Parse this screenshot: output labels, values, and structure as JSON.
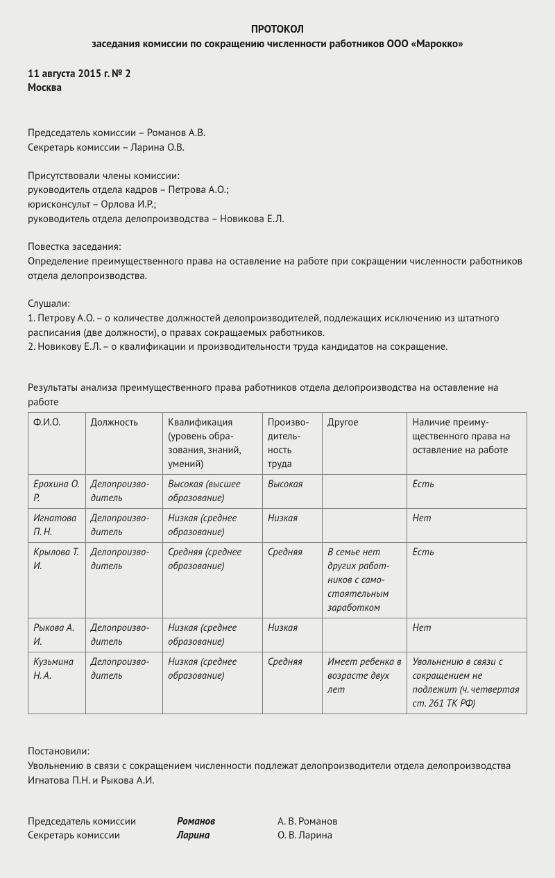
{
  "header": {
    "line1": "ПРОТОКОЛ",
    "line2": "заседания комиссии по сокращению численности работников ООО «Марокко»"
  },
  "date_block": {
    "date": "11 августа 2015 г. № 2",
    "city": "Москва"
  },
  "participants": {
    "chairman": "Председатель комиссии – Романов А.В.",
    "secretary": "Секретарь комиссии – Ларина О.В."
  },
  "attendance": {
    "header": "Присутствовали члены комиссии:",
    "lines": [
      "руководитель отдела кадров – Петрова А.О.;",
      "юрисконсульт – Орлова И.Р.;",
      "руководитель отдела делопроизводства – Новикова Е.Л."
    ]
  },
  "agenda": {
    "header": "Повестка заседания:",
    "text": "Определение преимущественного права на оставление на работе при сокращении численности работников отдела делопроизводства."
  },
  "heard": {
    "header": "Слушали:",
    "lines": [
      "1. Петрову А.О. – о количестве должностей делопроизводителей, подлежащих исключению из штат­ного расписания (две должности), о правах сокращаемых работников.",
      "2. Новикову Е.Л. – о квалификации и производительности труда кандидатов на сокращение."
    ]
  },
  "table_caption": "Результаты анализа преимущественного права работников отдела делопроизводства на оставление на работе",
  "table": {
    "columns": [
      "Ф.И.О.",
      "Должность",
      "Квалификация (уровень обра­зования, знаний, умений)",
      "Произво­дитель­ность труда",
      "Другое",
      "Наличие преиму­щественного права на оставление на работе"
    ],
    "rows": [
      [
        "Ерохи­на О. Р.",
        "Делопроизво­дитель",
        "Высокая (высшее образование)",
        "Высокая",
        "",
        "Есть"
      ],
      [
        "Игнато­ва П. Н.",
        "Делопроизво­дитель",
        "Низкая (среднее образование)",
        "Низкая",
        "",
        "Нет"
      ],
      [
        "Крыло­ва Т. И.",
        "Делопроизво­дитель",
        "Средняя (среднее образование)",
        "Средняя",
        "В семье нет других работ­ников с само­стоятельным заработком",
        "Есть"
      ],
      [
        "Рыко­ва А. И.",
        "Делопроизво­дитель",
        "Низкая (среднее образование)",
        "Низкая",
        "",
        "Нет"
      ],
      [
        "Кузьми­на Н. А.",
        "Делопроизво­дитель",
        "Низкая (среднее образование)",
        "Средняя",
        "Имеет ребенка в возрасте двух лет",
        "Увольнению в связи с сокращением не подлежит (ч. четвертая ст. 261 ТК РФ)"
      ]
    ]
  },
  "resolution": {
    "header": "Постановили:",
    "text": "Увольнению в связи с сокращением численности подлежат делопроизводители отдела делопро­изводства Игнатова П.Н. и Рыкова А.И."
  },
  "signatures": [
    {
      "role": "Председатель комиссии",
      "sig": "Романов",
      "name": "А. В. Романов"
    },
    {
      "role": "Секретарь комиссии",
      "sig": "Ларина",
      "name": "О. В. Ларина"
    }
  ]
}
